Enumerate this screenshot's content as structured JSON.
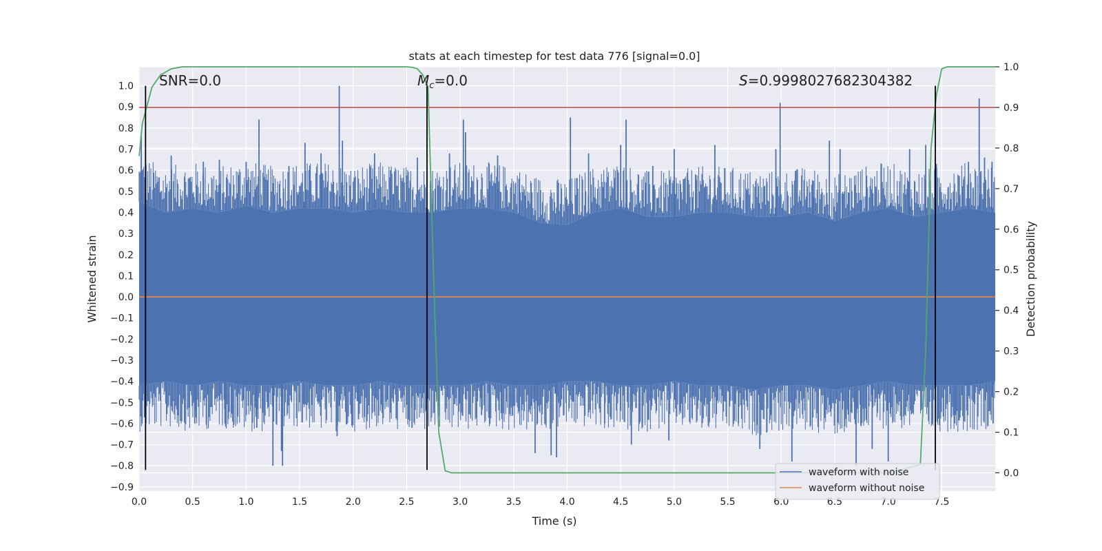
{
  "chart_data": {
    "type": "line",
    "title": "stats at each timestep for test data 776 [signal=0.0]",
    "xlabel": "Time (s)",
    "ylabel_left": "Whitened strain",
    "ylabel_right": "Detection probability",
    "xlim": [
      0.0,
      8.0
    ],
    "ylim_left": [
      -0.92,
      1.09
    ],
    "ylim_right": [
      -0.045,
      1.0
    ],
    "x_ticks": [
      0.0,
      0.5,
      1.0,
      1.5,
      2.0,
      2.5,
      3.0,
      3.5,
      4.0,
      4.5,
      5.0,
      5.5,
      6.0,
      6.5,
      7.0,
      7.5
    ],
    "x_tick_labels": [
      "0.0",
      "0.5",
      "1.0",
      "1.5",
      "2.0",
      "2.5",
      "3.0",
      "3.5",
      "4.0",
      "4.5",
      "5.0",
      "5.5",
      "6.0",
      "6.5",
      "7.0",
      "7.5"
    ],
    "y_left_ticks": [
      -0.9,
      -0.8,
      -0.7,
      -0.6,
      -0.5,
      -0.4,
      -0.3,
      -0.2,
      -0.1,
      0.0,
      0.1,
      0.2,
      0.3,
      0.4,
      0.5,
      0.6,
      0.7,
      0.8,
      0.9,
      1.0
    ],
    "y_left_tick_labels": [
      "−0.9",
      "−0.8",
      "−0.7",
      "−0.6",
      "−0.5",
      "−0.4",
      "−0.3",
      "−0.2",
      "−0.1",
      "0.0",
      "0.1",
      "0.2",
      "0.3",
      "0.4",
      "0.5",
      "0.6",
      "0.7",
      "0.8",
      "0.9",
      "1.0"
    ],
    "y_right_ticks": [
      0.0,
      0.1,
      0.2,
      0.3,
      0.4,
      0.5,
      0.6,
      0.7,
      0.8,
      0.9,
      1.0
    ],
    "y_right_tick_labels": [
      "0.0",
      "0.1",
      "0.2",
      "0.3",
      "0.4",
      "0.5",
      "0.6",
      "0.7",
      "0.8",
      "0.9",
      "1.0"
    ],
    "grid": true,
    "background": "#eaeaf2",
    "series": [
      {
        "name": "waveform with noise",
        "axis": "left",
        "color": "#4c72b0",
        "description": "dense noise fill between envelopes",
        "envelope_x": [
          0.0,
          0.25,
          0.5,
          0.75,
          1.0,
          1.25,
          1.5,
          1.75,
          2.0,
          2.25,
          2.5,
          2.75,
          3.0,
          3.25,
          3.5,
          3.75,
          4.0,
          4.25,
          4.5,
          4.75,
          5.0,
          5.25,
          5.5,
          5.75,
          6.0,
          6.25,
          6.5,
          6.75,
          7.0,
          7.25,
          7.5,
          7.75,
          8.0
        ],
        "envelope_upper": [
          0.45,
          0.4,
          0.42,
          0.4,
          0.43,
          0.4,
          0.42,
          0.42,
          0.4,
          0.42,
          0.4,
          0.4,
          0.42,
          0.42,
          0.4,
          0.35,
          0.34,
          0.4,
          0.42,
          0.38,
          0.38,
          0.4,
          0.4,
          0.38,
          0.38,
          0.4,
          0.36,
          0.4,
          0.42,
          0.38,
          0.4,
          0.42,
          0.4
        ],
        "envelope_lower": [
          -0.42,
          -0.4,
          -0.42,
          -0.4,
          -0.42,
          -0.42,
          -0.4,
          -0.42,
          -0.42,
          -0.4,
          -0.42,
          -0.42,
          -0.42,
          -0.4,
          -0.42,
          -0.42,
          -0.4,
          -0.4,
          -0.42,
          -0.42,
          -0.4,
          -0.42,
          -0.42,
          -0.44,
          -0.42,
          -0.42,
          -0.44,
          -0.42,
          -0.4,
          -0.42,
          -0.42,
          -0.42,
          -0.4
        ],
        "spikes": [
          {
            "x": 0.02,
            "y": 0.76
          },
          {
            "x": 0.02,
            "y": -0.35
          },
          {
            "x": 0.05,
            "y": -0.57
          },
          {
            "x": 0.3,
            "y": 0.67
          },
          {
            "x": 0.6,
            "y": 0.64
          },
          {
            "x": 0.75,
            "y": 0.65
          },
          {
            "x": 0.52,
            "y": -0.6
          },
          {
            "x": 0.8,
            "y": -0.53
          },
          {
            "x": 1.0,
            "y": 0.64
          },
          {
            "x": 1.1,
            "y": -0.62
          },
          {
            "x": 1.12,
            "y": 0.84
          },
          {
            "x": 1.25,
            "y": -0.8
          },
          {
            "x": 1.33,
            "y": -0.73
          },
          {
            "x": 1.34,
            "y": -0.8
          },
          {
            "x": 1.4,
            "y": 0.62
          },
          {
            "x": 1.55,
            "y": 0.73
          },
          {
            "x": 1.7,
            "y": 0.68
          },
          {
            "x": 1.87,
            "y": 1.0
          },
          {
            "x": 1.85,
            "y": -0.66
          },
          {
            "x": 1.9,
            "y": 0.74
          },
          {
            "x": 2.05,
            "y": -0.58
          },
          {
            "x": 2.2,
            "y": 0.68
          },
          {
            "x": 2.35,
            "y": 0.6
          },
          {
            "x": 2.55,
            "y": -0.62
          },
          {
            "x": 2.6,
            "y": 0.66
          },
          {
            "x": 2.9,
            "y": 0.68
          },
          {
            "x": 3.03,
            "y": 0.84
          },
          {
            "x": 3.05,
            "y": 0.78
          },
          {
            "x": 3.2,
            "y": -0.56
          },
          {
            "x": 3.35,
            "y": 0.67
          },
          {
            "x": 3.55,
            "y": 0.56
          },
          {
            "x": 3.7,
            "y": -0.74
          },
          {
            "x": 3.85,
            "y": -0.75
          },
          {
            "x": 3.9,
            "y": -0.76
          },
          {
            "x": 4.03,
            "y": 0.85
          },
          {
            "x": 4.2,
            "y": 0.68
          },
          {
            "x": 4.35,
            "y": -0.6
          },
          {
            "x": 4.5,
            "y": 0.72
          },
          {
            "x": 4.55,
            "y": 0.84
          },
          {
            "x": 4.6,
            "y": -0.7
          },
          {
            "x": 4.8,
            "y": 0.62
          },
          {
            "x": 4.95,
            "y": -0.68
          },
          {
            "x": 5.0,
            "y": 0.7
          },
          {
            "x": 5.2,
            "y": 0.58
          },
          {
            "x": 5.38,
            "y": 0.72
          },
          {
            "x": 5.6,
            "y": -0.6
          },
          {
            "x": 5.8,
            "y": -0.72
          },
          {
            "x": 5.95,
            "y": 0.7
          },
          {
            "x": 5.99,
            "y": 0.92
          },
          {
            "x": 6.1,
            "y": -0.78
          },
          {
            "x": 6.3,
            "y": 0.55
          },
          {
            "x": 6.45,
            "y": 0.74
          },
          {
            "x": 6.55,
            "y": 0.7
          },
          {
            "x": 6.7,
            "y": -0.8
          },
          {
            "x": 6.85,
            "y": -0.72
          },
          {
            "x": 7.0,
            "y": -0.78
          },
          {
            "x": 7.2,
            "y": 0.7
          },
          {
            "x": 7.35,
            "y": 0.72
          },
          {
            "x": 7.45,
            "y": 0.63
          },
          {
            "x": 7.62,
            "y": -0.6
          },
          {
            "x": 7.75,
            "y": 0.64
          },
          {
            "x": 7.85,
            "y": 0.94
          },
          {
            "x": 7.9,
            "y": 0.66
          },
          {
            "x": 7.97,
            "y": 0.64
          },
          {
            "x": 7.98,
            "y": -0.6
          }
        ]
      },
      {
        "name": "waveform without noise",
        "axis": "left",
        "color": "#dd8452",
        "x": [
          0.0,
          8.0
        ],
        "y": [
          0.0,
          0.0
        ]
      },
      {
        "name": "detection probability",
        "axis": "right",
        "color": "#55a868",
        "x": [
          0.0,
          0.03,
          0.07,
          0.12,
          0.2,
          0.3,
          0.4,
          0.5,
          1.0,
          1.5,
          2.0,
          2.5,
          2.55,
          2.6,
          2.65,
          2.7,
          2.75,
          2.8,
          2.86,
          2.92,
          3.0,
          3.5,
          4.0,
          5.0,
          6.0,
          7.0,
          7.3,
          7.35,
          7.4,
          7.45,
          7.5,
          7.55,
          7.6,
          8.0
        ],
        "y": [
          0.78,
          0.86,
          0.9,
          0.95,
          0.98,
          0.995,
          1.0,
          1.0,
          1.0,
          1.0,
          1.0,
          1.0,
          0.999,
          0.995,
          0.98,
          0.95,
          0.5,
          0.1,
          0.005,
          0.0,
          0.0,
          0.0,
          0.0,
          0.0,
          0.0,
          0.0,
          0.02,
          0.3,
          0.8,
          0.93,
          0.995,
          1.0,
          1.0,
          1.0
        ]
      }
    ],
    "threshold_line": {
      "axis": "right",
      "value": 0.9,
      "color": "#c44e52"
    },
    "vertical_markers": {
      "x": [
        0.06,
        2.69,
        7.44
      ],
      "color": "#000000",
      "y_range": [
        -0.82,
        1.0
      ]
    },
    "annotations": {
      "snr": "SNR=0.0",
      "mc_symbol": "M",
      "mc_sub": "c",
      "mc_value": "=0.0",
      "s_symbol": "S",
      "s_value": "=0.9998027682304382"
    },
    "legend": {
      "placement": "lower-right",
      "entries": [
        "waveform with noise",
        "waveform without noise"
      ]
    }
  }
}
